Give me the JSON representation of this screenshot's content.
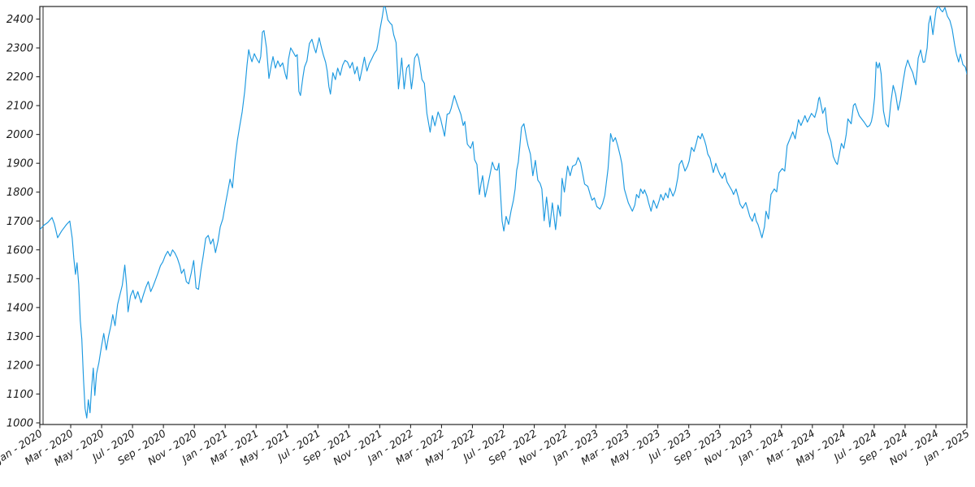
{
  "chart_data": {
    "type": "line",
    "title": "",
    "xlabel": "",
    "ylabel": "",
    "legend": "none",
    "grid": false,
    "background_color": "#ffffff",
    "axis_color": "#262626",
    "tick_label_color": "#1a1a1a",
    "line_color": "#1c99e0",
    "y_ticks": [
      1000,
      1100,
      1200,
      1300,
      1400,
      1500,
      1600,
      1700,
      1800,
      1900,
      2000,
      2100,
      2200,
      2300,
      2400
    ],
    "ylim": [
      994,
      2443
    ],
    "x_unit": "months since Jan 2020",
    "xlim_months": [
      0,
      60
    ],
    "x_tick_months": [
      0,
      2,
      4,
      6,
      8,
      10,
      12,
      14,
      16,
      18,
      20,
      22,
      24,
      26,
      28,
      30,
      32,
      34,
      36,
      38,
      40,
      42,
      44,
      46,
      48,
      50,
      52,
      54,
      56,
      58,
      60
    ],
    "x_tick_labels": [
      "Jan - 2020",
      "Mar - 2020",
      "May - 2020",
      "Jul - 2020",
      "Sep - 2020",
      "Nov - 2020",
      "Jan - 2021",
      "Mar - 2021",
      "May - 2021",
      "Jul - 2021",
      "Sep - 2021",
      "Nov - 2021",
      "Jan - 2022",
      "Mar - 2022",
      "May - 2022",
      "Jul - 2022",
      "Sep - 2022",
      "Nov - 2022",
      "Jan - 2023",
      "Mar - 2023",
      "May - 2023",
      "Jul - 2023",
      "Sep - 2023",
      "Nov - 2023",
      "Jan - 2024",
      "Mar - 2024",
      "May - 2024",
      "Jul - 2024",
      "Sep - 2024",
      "Nov - 2024",
      "Jan - 2025"
    ],
    "points": [
      [
        0.0,
        1670
      ],
      [
        0.26,
        1685
      ],
      [
        0.52,
        1695
      ],
      [
        0.79,
        1712
      ],
      [
        0.94,
        1690
      ],
      [
        1.15,
        1642
      ],
      [
        1.41,
        1665
      ],
      [
        1.73,
        1688
      ],
      [
        1.94,
        1700
      ],
      [
        2.1,
        1640
      ],
      [
        2.2,
        1572
      ],
      [
        2.31,
        1515
      ],
      [
        2.41,
        1555
      ],
      [
        2.52,
        1480
      ],
      [
        2.62,
        1355
      ],
      [
        2.72,
        1290
      ],
      [
        2.83,
        1150
      ],
      [
        2.93,
        1050
      ],
      [
        3.04,
        1017
      ],
      [
        3.14,
        1080
      ],
      [
        3.25,
        1035
      ],
      [
        3.35,
        1120
      ],
      [
        3.46,
        1190
      ],
      [
        3.56,
        1095
      ],
      [
        3.67,
        1170
      ],
      [
        3.83,
        1210
      ],
      [
        3.98,
        1262
      ],
      [
        4.14,
        1310
      ],
      [
        4.3,
        1253
      ],
      [
        4.45,
        1300
      ],
      [
        4.61,
        1340
      ],
      [
        4.72,
        1375
      ],
      [
        4.87,
        1337
      ],
      [
        5.03,
        1410
      ],
      [
        5.19,
        1445
      ],
      [
        5.34,
        1477
      ],
      [
        5.5,
        1547
      ],
      [
        5.61,
        1480
      ],
      [
        5.71,
        1385
      ],
      [
        5.87,
        1440
      ],
      [
        6.03,
        1460
      ],
      [
        6.18,
        1430
      ],
      [
        6.34,
        1455
      ],
      [
        6.55,
        1417
      ],
      [
        6.71,
        1445
      ],
      [
        6.86,
        1470
      ],
      [
        7.02,
        1490
      ],
      [
        7.18,
        1455
      ],
      [
        7.34,
        1475
      ],
      [
        7.49,
        1496
      ],
      [
        7.65,
        1520
      ],
      [
        7.81,
        1545
      ],
      [
        7.96,
        1558
      ],
      [
        8.12,
        1580
      ],
      [
        8.28,
        1595
      ],
      [
        8.44,
        1578
      ],
      [
        8.59,
        1600
      ],
      [
        8.75,
        1588
      ],
      [
        8.91,
        1570
      ],
      [
        9.06,
        1545
      ],
      [
        9.17,
        1518
      ],
      [
        9.33,
        1533
      ],
      [
        9.48,
        1490
      ],
      [
        9.64,
        1482
      ],
      [
        9.8,
        1520
      ],
      [
        9.96,
        1563
      ],
      [
        10.11,
        1468
      ],
      [
        10.27,
        1463
      ],
      [
        10.43,
        1530
      ],
      [
        10.58,
        1580
      ],
      [
        10.74,
        1640
      ],
      [
        10.9,
        1650
      ],
      [
        11.06,
        1620
      ],
      [
        11.21,
        1638
      ],
      [
        11.37,
        1590
      ],
      [
        11.53,
        1630
      ],
      [
        11.68,
        1680
      ],
      [
        11.84,
        1707
      ],
      [
        12.0,
        1755
      ],
      [
        12.16,
        1800
      ],
      [
        12.31,
        1845
      ],
      [
        12.47,
        1815
      ],
      [
        12.63,
        1910
      ],
      [
        12.79,
        1980
      ],
      [
        12.94,
        2030
      ],
      [
        13.1,
        2079
      ],
      [
        13.26,
        2150
      ],
      [
        13.41,
        2240
      ],
      [
        13.52,
        2294
      ],
      [
        13.62,
        2270
      ],
      [
        13.73,
        2252
      ],
      [
        13.88,
        2280
      ],
      [
        14.04,
        2262
      ],
      [
        14.2,
        2248
      ],
      [
        14.3,
        2270
      ],
      [
        14.41,
        2355
      ],
      [
        14.51,
        2360
      ],
      [
        14.67,
        2300
      ],
      [
        14.83,
        2194
      ],
      [
        14.98,
        2240
      ],
      [
        15.09,
        2270
      ],
      [
        15.25,
        2230
      ],
      [
        15.4,
        2255
      ],
      [
        15.56,
        2235
      ],
      [
        15.72,
        2248
      ],
      [
        15.88,
        2210
      ],
      [
        15.98,
        2192
      ],
      [
        16.09,
        2260
      ],
      [
        16.24,
        2300
      ],
      [
        16.4,
        2285
      ],
      [
        16.56,
        2270
      ],
      [
        16.66,
        2277
      ],
      [
        16.77,
        2149
      ],
      [
        16.87,
        2135
      ],
      [
        17.03,
        2200
      ],
      [
        17.13,
        2234
      ],
      [
        17.29,
        2255
      ],
      [
        17.45,
        2315
      ],
      [
        17.61,
        2330
      ],
      [
        17.76,
        2300
      ],
      [
        17.87,
        2283
      ],
      [
        18.08,
        2335
      ],
      [
        18.23,
        2300
      ],
      [
        18.34,
        2277
      ],
      [
        18.5,
        2250
      ],
      [
        18.6,
        2220
      ],
      [
        18.71,
        2166
      ],
      [
        18.81,
        2140
      ],
      [
        18.97,
        2214
      ],
      [
        19.13,
        2190
      ],
      [
        19.28,
        2230
      ],
      [
        19.44,
        2205
      ],
      [
        19.6,
        2240
      ],
      [
        19.75,
        2257
      ],
      [
        19.91,
        2251
      ],
      [
        20.07,
        2230
      ],
      [
        20.23,
        2250
      ],
      [
        20.38,
        2210
      ],
      [
        20.54,
        2235
      ],
      [
        20.7,
        2186
      ],
      [
        20.85,
        2225
      ],
      [
        21.01,
        2268
      ],
      [
        21.17,
        2220
      ],
      [
        21.33,
        2246
      ],
      [
        21.48,
        2262
      ],
      [
        21.64,
        2280
      ],
      [
        21.8,
        2293
      ],
      [
        21.9,
        2320
      ],
      [
        22.01,
        2363
      ],
      [
        22.16,
        2406
      ],
      [
        22.27,
        2445
      ],
      [
        22.37,
        2440
      ],
      [
        22.53,
        2397
      ],
      [
        22.69,
        2385
      ],
      [
        22.79,
        2380
      ],
      [
        22.9,
        2346
      ],
      [
        23.06,
        2318
      ],
      [
        23.21,
        2158
      ],
      [
        23.32,
        2210
      ],
      [
        23.42,
        2265
      ],
      [
        23.58,
        2158
      ],
      [
        23.74,
        2230
      ],
      [
        23.89,
        2242
      ],
      [
        24.05,
        2158
      ],
      [
        24.15,
        2200
      ],
      [
        24.26,
        2265
      ],
      [
        24.42,
        2280
      ],
      [
        24.52,
        2265
      ],
      [
        24.63,
        2230
      ],
      [
        24.73,
        2191
      ],
      [
        24.89,
        2177
      ],
      [
        25.05,
        2073
      ],
      [
        25.26,
        2008
      ],
      [
        25.41,
        2065
      ],
      [
        25.57,
        2030
      ],
      [
        25.78,
        2078
      ],
      [
        25.94,
        2054
      ],
      [
        26.09,
        2020
      ],
      [
        26.2,
        1994
      ],
      [
        26.36,
        2070
      ],
      [
        26.51,
        2073
      ],
      [
        26.62,
        2090
      ],
      [
        26.83,
        2135
      ],
      [
        26.98,
        2110
      ],
      [
        27.09,
        2093
      ],
      [
        27.25,
        2070
      ],
      [
        27.4,
        2031
      ],
      [
        27.51,
        2045
      ],
      [
        27.67,
        1966
      ],
      [
        27.88,
        1952
      ],
      [
        28.03,
        1975
      ],
      [
        28.14,
        1913
      ],
      [
        28.29,
        1896
      ],
      [
        28.45,
        1792
      ],
      [
        28.56,
        1830
      ],
      [
        28.66,
        1857
      ],
      [
        28.82,
        1783
      ],
      [
        28.98,
        1820
      ],
      [
        29.13,
        1860
      ],
      [
        29.29,
        1904
      ],
      [
        29.45,
        1880
      ],
      [
        29.61,
        1876
      ],
      [
        29.71,
        1900
      ],
      [
        29.82,
        1792
      ],
      [
        29.92,
        1700
      ],
      [
        30.03,
        1665
      ],
      [
        30.18,
        1716
      ],
      [
        30.34,
        1688
      ],
      [
        30.5,
        1735
      ],
      [
        30.65,
        1772
      ],
      [
        30.76,
        1811
      ],
      [
        30.86,
        1876
      ],
      [
        30.97,
        1904
      ],
      [
        31.07,
        1960
      ],
      [
        31.18,
        2025
      ],
      [
        31.33,
        2037
      ],
      [
        31.49,
        1990
      ],
      [
        31.6,
        1961
      ],
      [
        31.75,
        1932
      ],
      [
        31.91,
        1857
      ],
      [
        32.07,
        1910
      ],
      [
        32.23,
        1842
      ],
      [
        32.38,
        1830
      ],
      [
        32.49,
        1811
      ],
      [
        32.64,
        1701
      ],
      [
        32.8,
        1783
      ],
      [
        33.01,
        1679
      ],
      [
        33.17,
        1763
      ],
      [
        33.38,
        1670
      ],
      [
        33.54,
        1755
      ],
      [
        33.69,
        1717
      ],
      [
        33.8,
        1848
      ],
      [
        33.95,
        1800
      ],
      [
        34.16,
        1890
      ],
      [
        34.32,
        1857
      ],
      [
        34.48,
        1890
      ],
      [
        34.69,
        1896
      ],
      [
        34.84,
        1920
      ],
      [
        35.0,
        1901
      ],
      [
        35.16,
        1857
      ],
      [
        35.26,
        1828
      ],
      [
        35.47,
        1820
      ],
      [
        35.63,
        1790
      ],
      [
        35.74,
        1772
      ],
      [
        35.89,
        1780
      ],
      [
        36.05,
        1750
      ],
      [
        36.26,
        1741
      ],
      [
        36.42,
        1760
      ],
      [
        36.57,
        1789
      ],
      [
        36.78,
        1882
      ],
      [
        36.94,
        2003
      ],
      [
        37.1,
        1975
      ],
      [
        37.25,
        1989
      ],
      [
        37.41,
        1960
      ],
      [
        37.57,
        1924
      ],
      [
        37.67,
        1898
      ],
      [
        37.83,
        1811
      ],
      [
        38.09,
        1763
      ],
      [
        38.35,
        1734
      ],
      [
        38.51,
        1755
      ],
      [
        38.62,
        1792
      ],
      [
        38.77,
        1780
      ],
      [
        38.88,
        1811
      ],
      [
        39.04,
        1795
      ],
      [
        39.14,
        1808
      ],
      [
        39.3,
        1785
      ],
      [
        39.4,
        1763
      ],
      [
        39.56,
        1734
      ],
      [
        39.72,
        1772
      ],
      [
        39.93,
        1744
      ],
      [
        40.08,
        1770
      ],
      [
        40.19,
        1792
      ],
      [
        40.35,
        1772
      ],
      [
        40.5,
        1797
      ],
      [
        40.66,
        1780
      ],
      [
        40.77,
        1814
      ],
      [
        40.98,
        1786
      ],
      [
        41.13,
        1806
      ],
      [
        41.29,
        1850
      ],
      [
        41.39,
        1896
      ],
      [
        41.55,
        1910
      ],
      [
        41.76,
        1873
      ],
      [
        41.92,
        1890
      ],
      [
        42.02,
        1907
      ],
      [
        42.18,
        1955
      ],
      [
        42.34,
        1941
      ],
      [
        42.49,
        1970
      ],
      [
        42.6,
        1995
      ],
      [
        42.76,
        1985
      ],
      [
        42.86,
        2003
      ],
      [
        43.02,
        1980
      ],
      [
        43.12,
        1961
      ],
      [
        43.23,
        1932
      ],
      [
        43.38,
        1918
      ],
      [
        43.59,
        1868
      ],
      [
        43.75,
        1900
      ],
      [
        43.91,
        1875
      ],
      [
        44.01,
        1862
      ],
      [
        44.17,
        1848
      ],
      [
        44.33,
        1867
      ],
      [
        44.48,
        1835
      ],
      [
        44.64,
        1820
      ],
      [
        44.8,
        1805
      ],
      [
        44.9,
        1792
      ],
      [
        45.06,
        1811
      ],
      [
        45.22,
        1780
      ],
      [
        45.32,
        1758
      ],
      [
        45.48,
        1744
      ],
      [
        45.69,
        1764
      ],
      [
        45.85,
        1735
      ],
      [
        45.95,
        1716
      ],
      [
        46.11,
        1699
      ],
      [
        46.27,
        1727
      ],
      [
        46.37,
        1700
      ],
      [
        46.48,
        1688
      ],
      [
        46.64,
        1660
      ],
      [
        46.74,
        1642
      ],
      [
        46.9,
        1680
      ],
      [
        47.0,
        1734
      ],
      [
        47.16,
        1707
      ],
      [
        47.32,
        1792
      ],
      [
        47.53,
        1811
      ],
      [
        47.69,
        1801
      ],
      [
        47.84,
        1867
      ],
      [
        48.05,
        1882
      ],
      [
        48.21,
        1873
      ],
      [
        48.37,
        1961
      ],
      [
        48.58,
        1989
      ],
      [
        48.73,
        2009
      ],
      [
        48.89,
        1985
      ],
      [
        49.1,
        2051
      ],
      [
        49.26,
        2031
      ],
      [
        49.41,
        2050
      ],
      [
        49.52,
        2065
      ],
      [
        49.68,
        2043
      ],
      [
        49.94,
        2073
      ],
      [
        50.15,
        2059
      ],
      [
        50.31,
        2090
      ],
      [
        50.41,
        2124
      ],
      [
        50.46,
        2129
      ],
      [
        50.67,
        2073
      ],
      [
        50.83,
        2093
      ],
      [
        50.99,
        2009
      ],
      [
        51.2,
        1975
      ],
      [
        51.35,
        1924
      ],
      [
        51.51,
        1904
      ],
      [
        51.62,
        1896
      ],
      [
        51.88,
        1969
      ],
      [
        52.04,
        1952
      ],
      [
        52.19,
        2000
      ],
      [
        52.3,
        2054
      ],
      [
        52.51,
        2037
      ],
      [
        52.66,
        2101
      ],
      [
        52.77,
        2107
      ],
      [
        52.93,
        2080
      ],
      [
        53.03,
        2065
      ],
      [
        53.19,
        2054
      ],
      [
        53.35,
        2043
      ],
      [
        53.56,
        2026
      ],
      [
        53.71,
        2031
      ],
      [
        53.82,
        2045
      ],
      [
        53.92,
        2073
      ],
      [
        54.03,
        2130
      ],
      [
        54.13,
        2251
      ],
      [
        54.24,
        2230
      ],
      [
        54.34,
        2248
      ],
      [
        54.45,
        2210
      ],
      [
        54.6,
        2082
      ],
      [
        54.76,
        2037
      ],
      [
        54.92,
        2026
      ],
      [
        55.08,
        2110
      ],
      [
        55.23,
        2170
      ],
      [
        55.39,
        2140
      ],
      [
        55.55,
        2084
      ],
      [
        55.7,
        2120
      ],
      [
        55.86,
        2180
      ],
      [
        56.02,
        2230
      ],
      [
        56.17,
        2258
      ],
      [
        56.33,
        2234
      ],
      [
        56.49,
        2215
      ],
      [
        56.7,
        2172
      ],
      [
        56.85,
        2265
      ],
      [
        57.01,
        2293
      ],
      [
        57.17,
        2250
      ],
      [
        57.27,
        2251
      ],
      [
        57.43,
        2300
      ],
      [
        57.53,
        2383
      ],
      [
        57.64,
        2411
      ],
      [
        57.8,
        2346
      ],
      [
        57.9,
        2390
      ],
      [
        58.01,
        2434
      ],
      [
        58.16,
        2445
      ],
      [
        58.32,
        2431
      ],
      [
        58.43,
        2425
      ],
      [
        58.58,
        2440
      ],
      [
        58.74,
        2410
      ],
      [
        58.9,
        2395
      ],
      [
        59.05,
        2365
      ],
      [
        59.21,
        2310
      ],
      [
        59.32,
        2279
      ],
      [
        59.47,
        2251
      ],
      [
        59.58,
        2279
      ],
      [
        59.74,
        2242
      ],
      [
        59.9,
        2234
      ],
      [
        60.0,
        2210
      ]
    ]
  }
}
